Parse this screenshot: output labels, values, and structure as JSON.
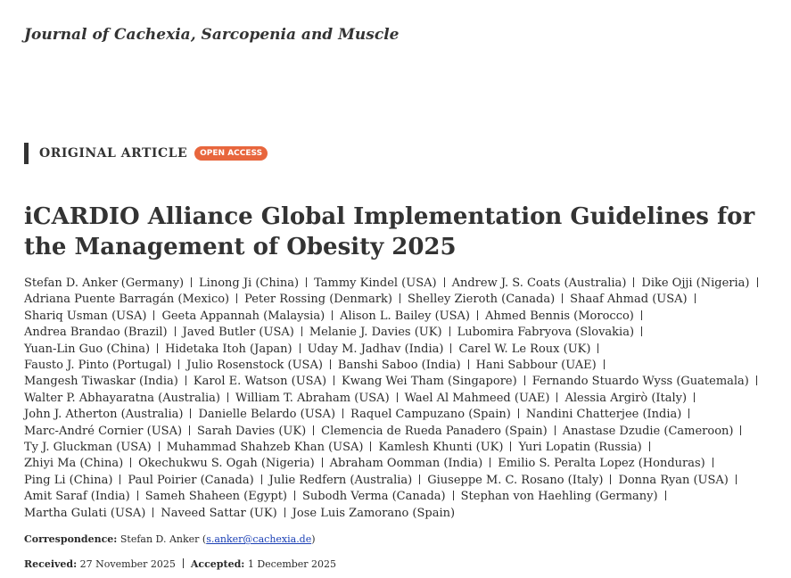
{
  "header": {
    "journal": "Journal of Cachexia, Sarcopenia and Muscle"
  },
  "article": {
    "type": "ORIGINAL ARTICLE",
    "access": "OPEN ACCESS",
    "title": "iCARDIO Alliance Global Implementation Guidelines for the Management of Obesity 2025"
  },
  "authors": {
    "lines": [
      [
        "Stefan D. Anker (Germany)",
        "Linong Ji (China)",
        "Tammy Kindel (USA)",
        "Andrew J. S. Coats (Australia)",
        "Dike Ojji (Nigeria)"
      ],
      [
        "Adriana Puente Barragán (Mexico)",
        "Peter Rossing (Denmark)",
        "Shelley Zieroth (Canada)",
        "Shaaf Ahmad (USA)"
      ],
      [
        "Shariq Usman (USA)",
        "Geeta Appannah (Malaysia)",
        "Alison L. Bailey (USA)",
        "Ahmed Bennis (Morocco)"
      ],
      [
        "Andrea Brandao (Brazil)",
        "Javed Butler (USA)",
        "Melanie J. Davies (UK)",
        "Lubomira Fabryova (Slovakia)"
      ],
      [
        "Yuan-Lin Guo (China)",
        "Hidetaka Itoh (Japan)",
        "Uday M. Jadhav (India)",
        "Carel W. Le Roux (UK)"
      ],
      [
        "Fausto J. Pinto (Portugal)",
        "Julio Rosenstock (USA)",
        "Banshi Saboo (India)",
        "Hani Sabbour (UAE)"
      ],
      [
        "Mangesh Tiwaskar (India)",
        "Karol E. Watson (USA)",
        "Kwang Wei Tham (Singapore)",
        "Fernando Stuardo Wyss (Guatemala)"
      ],
      [
        "Walter P. Abhayaratna (Australia)",
        "William T. Abraham (USA)",
        "Wael Al Mahmeed (UAE)",
        "Alessia Argirò (Italy)"
      ],
      [
        "John J. Atherton (Australia)",
        "Danielle Belardo (USA)",
        "Raquel Campuzano (Spain)",
        "Nandini Chatterjee (India)"
      ],
      [
        "Marc-André Cornier (USA)",
        "Sarah Davies (UK)",
        "Clemencia de Rueda Panadero (Spain)",
        "Anastase Dzudie (Cameroon)"
      ],
      [
        "Ty J. Gluckman (USA)",
        "Muhammad Shahzeb Khan (USA)",
        "Kamlesh Khunti (UK)",
        "Yuri Lopatin (Russia)"
      ],
      [
        "Zhiyi Ma (China)",
        "Okechukwu S. Ogah (Nigeria)",
        "Abraham Oomman (India)",
        "Emilio S. Peralta Lopez (Honduras)"
      ],
      [
        "Ping Li (China)",
        "Paul Poirier (Canada)",
        "Julie Redfern (Australia)",
        "Giuseppe M. C. Rosano (Italy)",
        "Donna Ryan (USA)"
      ],
      [
        "Amit Saraf (India)",
        "Sameh Shaheen (Egypt)",
        "Subodh Verma (Canada)",
        "Stephan von Haehling (Germany)"
      ],
      [
        "Martha Gulati (USA)",
        "Naveed Sattar (UK)",
        "Jose Luis Zamorano (Spain)"
      ]
    ]
  },
  "correspondence": {
    "label": "Correspondence:",
    "name": "Stefan D. Anker (",
    "email": "s.anker@cachexia.de",
    "close": ")"
  },
  "dates": {
    "received_label": "Received:",
    "received": "27 November 2025",
    "accepted_label": "Accepted:",
    "accepted": "1 December 2025"
  }
}
